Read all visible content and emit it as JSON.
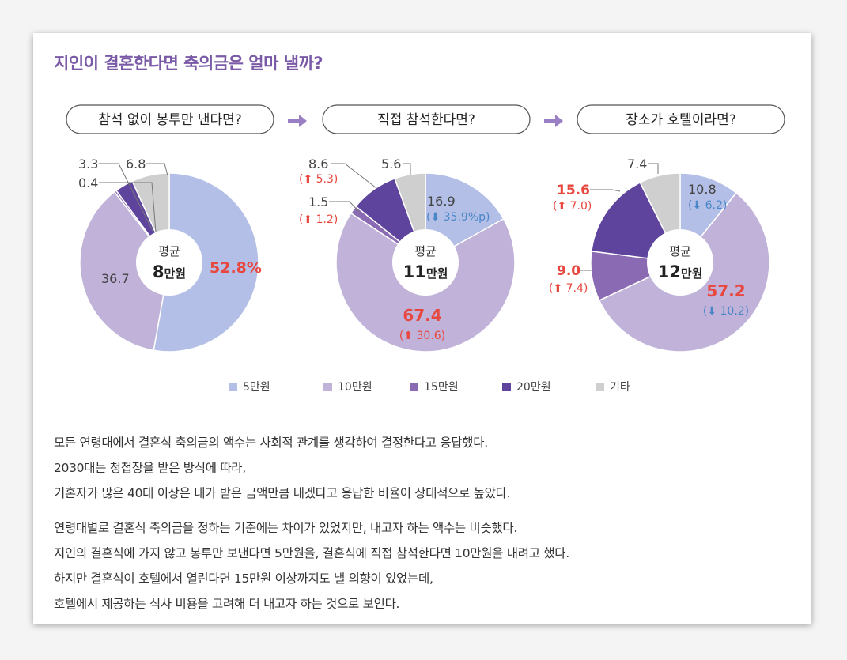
{
  "title": "지인이 결혼한다면 축의금은 얼마 낼까?",
  "colors": {
    "title": "#7a5aa6",
    "accent_red": "#e8473f",
    "accent_blue": "#4a86c8",
    "arrow": "#9b7fc4"
  },
  "chart_data": [
    {
      "type": "pie",
      "title": "참석 없이 봉투만 낸다면?",
      "center_label": "평균",
      "center_value": "8",
      "center_unit": "만원",
      "slices": [
        {
          "category": "5만원",
          "value": 52.8,
          "label": "52.8",
          "suffix": "%",
          "color": "#b3bfe6"
        },
        {
          "category": "10만원",
          "value": 36.7,
          "label": "36.7",
          "color": "#c0b2d9"
        },
        {
          "category": "15만원",
          "value": 0.4,
          "label": "0.4",
          "color": "#8a6ab2"
        },
        {
          "category": "20만원",
          "value": 3.3,
          "label": "3.3",
          "color": "#5e449c"
        },
        {
          "category": "기타",
          "value": 6.8,
          "label": "6.8",
          "color": "#cfcfcf"
        }
      ]
    },
    {
      "type": "pie",
      "title": "직접 참석한다면?",
      "center_label": "평균",
      "center_value": "11",
      "center_unit": "만원",
      "slices": [
        {
          "category": "5만원",
          "value": 16.9,
          "label": "16.9",
          "change": "35.9%p",
          "direction": "down",
          "color": "#b3bfe6"
        },
        {
          "category": "10만원",
          "value": 67.4,
          "label": "67.4",
          "change": "30.6",
          "direction": "up",
          "color": "#c0b2d9"
        },
        {
          "category": "15만원",
          "value": 1.5,
          "label": "1.5",
          "change": "1.2",
          "direction": "up",
          "color": "#8a6ab2"
        },
        {
          "category": "20만원",
          "value": 8.6,
          "label": "8.6",
          "change": "5.3",
          "direction": "up",
          "color": "#5e449c"
        },
        {
          "category": "기타",
          "value": 5.6,
          "label": "5.6",
          "color": "#cfcfcf"
        }
      ]
    },
    {
      "type": "pie",
      "title": "장소가 호텔이라면?",
      "center_label": "평균",
      "center_value": "12",
      "center_unit": "만원",
      "slices": [
        {
          "category": "5만원",
          "value": 10.8,
          "label": "10.8",
          "change": "6.2",
          "direction": "down",
          "color": "#b3bfe6"
        },
        {
          "category": "10만원",
          "value": 57.2,
          "label": "57.2",
          "change": "10.2",
          "direction": "down",
          "color": "#c0b2d9"
        },
        {
          "category": "15만원",
          "value": 9.0,
          "label": "9.0",
          "change": "7.4",
          "direction": "up",
          "color": "#8a6ab2"
        },
        {
          "category": "20만원",
          "value": 15.6,
          "label": "15.6",
          "change": "7.0",
          "direction": "up",
          "color": "#5e449c"
        },
        {
          "category": "기타",
          "value": 7.4,
          "label": "7.4",
          "color": "#cfcfcf"
        }
      ]
    }
  ],
  "legend": [
    {
      "label": "5만원",
      "color": "#b3bfe6"
    },
    {
      "label": "10만원",
      "color": "#c0b2d9"
    },
    {
      "label": "15만원",
      "color": "#8a6ab2"
    },
    {
      "label": "20만원",
      "color": "#5e449c"
    },
    {
      "label": "기타",
      "color": "#cfcfcf"
    }
  ],
  "paragraphs": [
    [
      "모든 연령대에서 결혼식 축의금의 액수는 사회적 관계를 생각하여 결정한다고 응답했다.",
      "2030대는 청첩장을 받은 방식에 따라,",
      "기혼자가 많은 40대 이상은 내가 받은 금액만큼 내겠다고 응답한 비율이 상대적으로 높았다."
    ],
    [
      "연령대별로 결혼식 축의금을 정하는 기준에는 차이가 있었지만, 내고자 하는 액수는 비슷했다.",
      "지인의 결혼식에 가지 않고 봉투만 보낸다면 5만원을, 결혼식에 직접 참석한다면 10만원을 내려고 했다.",
      "하지만 결혼식이 호텔에서 열린다면 15만원 이상까지도 낼 의향이 있었는데,",
      "호텔에서 제공하는 식사 비용을 고려해 더 내고자 하는 것으로 보인다."
    ]
  ]
}
